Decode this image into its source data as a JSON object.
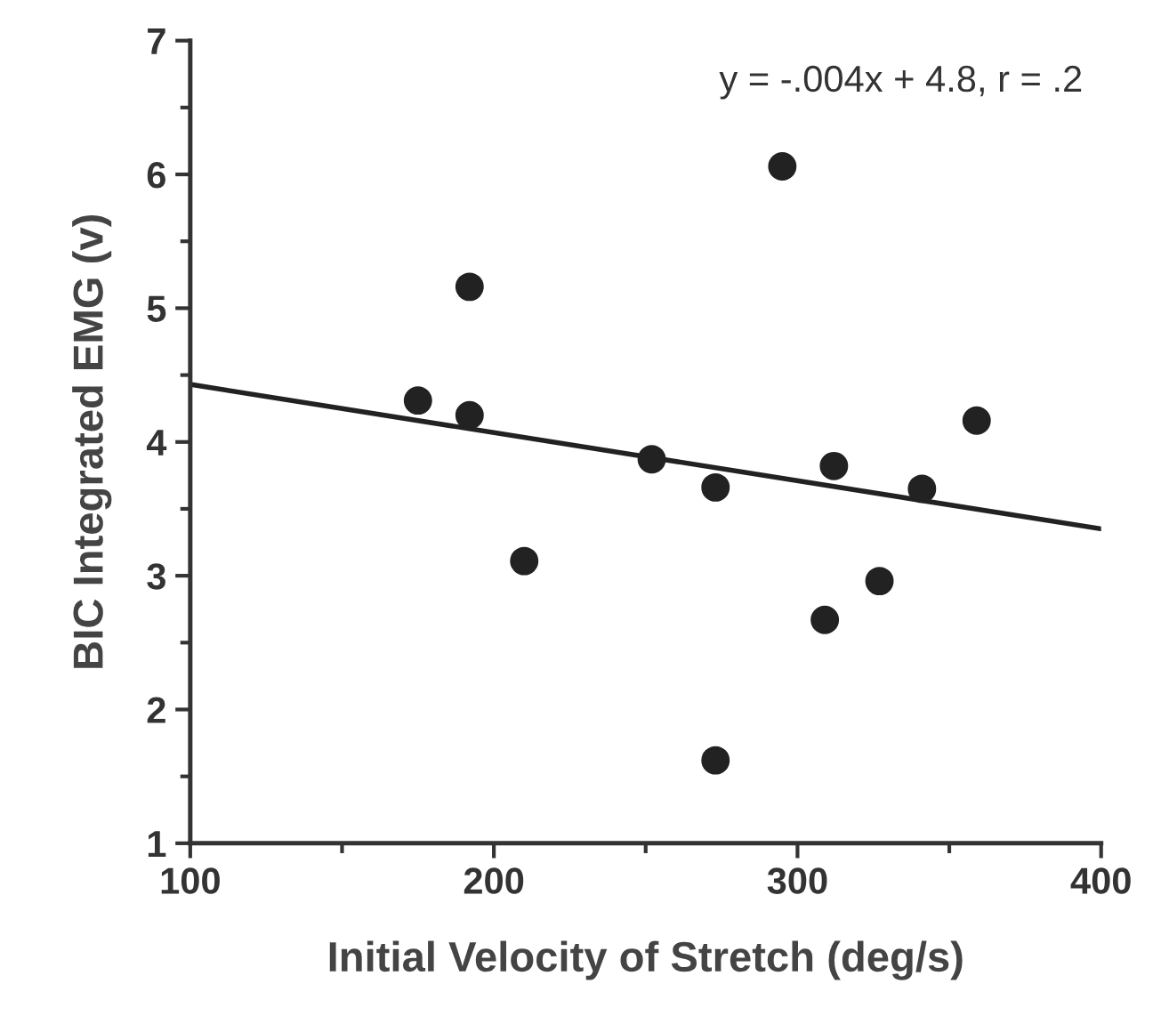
{
  "chart_data": {
    "type": "scatter",
    "xlabel": "Initial Velocity of Stretch (deg/s)",
    "ylabel": "BIC Integrated EMG (v)",
    "annotations": [
      "y = -.004x + 4.8, r = .2"
    ],
    "xlim": [
      100,
      400
    ],
    "xticks": [
      100,
      200,
      300,
      400
    ],
    "ylim": [
      1,
      7
    ],
    "yticks": [
      1,
      2,
      3,
      4,
      5,
      6,
      7
    ],
    "grid": false,
    "legend": false,
    "marker": "circle",
    "series": [
      {
        "color": "#222222",
        "x": [
          175,
          192,
          192,
          210,
          252,
          273,
          273,
          295,
          309,
          312,
          327,
          341,
          359
        ],
        "values": [
          4.31,
          5.16,
          4.2,
          3.11,
          3.87,
          3.66,
          1.62,
          6.06,
          2.67,
          3.82,
          2.96,
          3.65,
          4.16
        ]
      },
      {
        "type": "line",
        "color": "#222222",
        "x": [
          100,
          400
        ],
        "values": [
          4.43,
          3.35
        ],
        "marker": "none",
        "line_style": "solid"
      }
    ]
  }
}
